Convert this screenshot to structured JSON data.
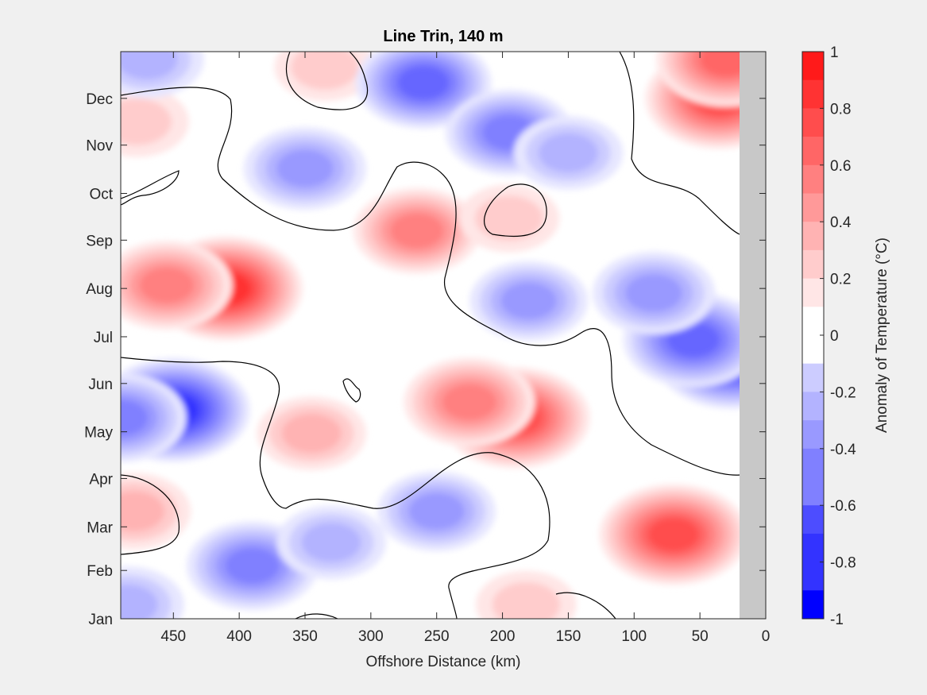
{
  "chart_data": {
    "type": "heatmap",
    "title": "Line Trin, 140 m",
    "xlabel": "Offshore Distance (km)",
    "ylabel": "",
    "x_reversed": true,
    "xlim": [
      0,
      490
    ],
    "ylim_days": [
      1,
      365
    ],
    "x_ticks": [
      {
        "value": 450,
        "label": "450"
      },
      {
        "value": 400,
        "label": "400"
      },
      {
        "value": 350,
        "label": "350"
      },
      {
        "value": 300,
        "label": "300"
      },
      {
        "value": 250,
        "label": "250"
      },
      {
        "value": 200,
        "label": "200"
      },
      {
        "value": 150,
        "label": "150"
      },
      {
        "value": 100,
        "label": "100"
      },
      {
        "value": 50,
        "label": "50"
      },
      {
        "value": 0,
        "label": "0"
      }
    ],
    "y_ticks": [
      {
        "day": 1,
        "label": "Jan"
      },
      {
        "day": 32,
        "label": "Feb"
      },
      {
        "day": 60,
        "label": "Mar"
      },
      {
        "day": 91,
        "label": "Apr"
      },
      {
        "day": 121,
        "label": "May"
      },
      {
        "day": 152,
        "label": "Jun"
      },
      {
        "day": 182,
        "label": "Jul"
      },
      {
        "day": 213,
        "label": "Aug"
      },
      {
        "day": 244,
        "label": "Sep"
      },
      {
        "day": 274,
        "label": "Oct"
      },
      {
        "day": 305,
        "label": "Nov"
      },
      {
        "day": 335,
        "label": "Dec"
      }
    ],
    "no_data_region_km": [
      0,
      20
    ],
    "no_data_color": "#c8c8c8",
    "zero_contour_color": "#000000",
    "colorbar": {
      "label": "Anomaly of Temperature (°C)",
      "range": [
        -1,
        1
      ],
      "step": 0.1,
      "ticks": [
        {
          "value": 1,
          "label": "1"
        },
        {
          "value": 0.8,
          "label": "0.8"
        },
        {
          "value": 0.6,
          "label": "0.6"
        },
        {
          "value": 0.4,
          "label": "0.4"
        },
        {
          "value": 0.2,
          "label": "0.2"
        },
        {
          "value": 0,
          "label": "0"
        },
        {
          "value": -0.2,
          "label": "-0.2"
        },
        {
          "value": -0.4,
          "label": "-0.4"
        },
        {
          "value": -0.6,
          "label": "-0.6"
        },
        {
          "value": -0.8,
          "label": "-0.8"
        },
        {
          "value": -1,
          "label": "-1"
        }
      ],
      "negative_color": "#0000ff",
      "positive_color": "#ff0000",
      "zero_color": "#ffffff"
    },
    "anomaly_features": [
      {
        "x_km": 410,
        "day": 213,
        "value": 0.75
      },
      {
        "x_km": 455,
        "day": 215,
        "value": 0.5
      },
      {
        "x_km": 265,
        "day": 250,
        "value": 0.45
      },
      {
        "x_km": 190,
        "day": 130,
        "value": 0.7
      },
      {
        "x_km": 225,
        "day": 140,
        "value": 0.5
      },
      {
        "x_km": 70,
        "day": 55,
        "value": 0.7
      },
      {
        "x_km": 35,
        "day": 335,
        "value": 0.7
      },
      {
        "x_km": 30,
        "day": 360,
        "value": 0.6
      },
      {
        "x_km": 480,
        "day": 70,
        "value": 0.3
      },
      {
        "x_km": 478,
        "day": 320,
        "value": 0.2
      },
      {
        "x_km": 345,
        "day": 120,
        "value": 0.25
      },
      {
        "x_km": 182,
        "day": 10,
        "value": 0.15
      },
      {
        "x_km": 335,
        "day": 355,
        "value": 0.15
      },
      {
        "x_km": 195,
        "day": 258,
        "value": 0.15
      },
      {
        "x_km": 450,
        "day": 135,
        "value": -0.75
      },
      {
        "x_km": 490,
        "day": 130,
        "value": -0.5
      },
      {
        "x_km": 25,
        "day": 170,
        "value": -0.8
      },
      {
        "x_km": 55,
        "day": 180,
        "value": -0.6
      },
      {
        "x_km": 85,
        "day": 210,
        "value": -0.4
      },
      {
        "x_km": 260,
        "day": 345,
        "value": -0.55
      },
      {
        "x_km": 195,
        "day": 313,
        "value": -0.45
      },
      {
        "x_km": 350,
        "day": 290,
        "value": -0.4
      },
      {
        "x_km": 180,
        "day": 205,
        "value": -0.35
      },
      {
        "x_km": 390,
        "day": 35,
        "value": -0.5
      },
      {
        "x_km": 250,
        "day": 70,
        "value": -0.35
      },
      {
        "x_km": 485,
        "day": 10,
        "value": -0.3
      },
      {
        "x_km": 150,
        "day": 300,
        "value": -0.25
      },
      {
        "x_km": 470,
        "day": 360,
        "value": -0.3
      },
      {
        "x_km": 330,
        "day": 50,
        "value": -0.25
      }
    ]
  }
}
